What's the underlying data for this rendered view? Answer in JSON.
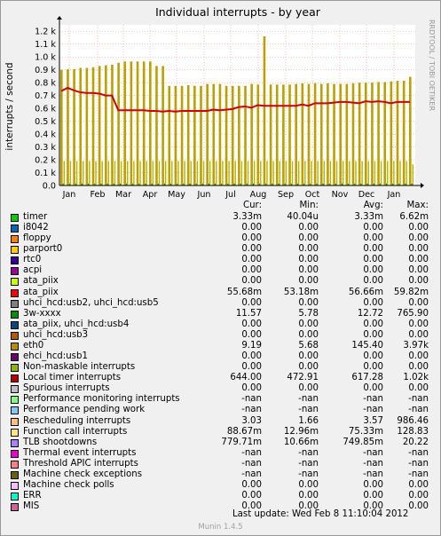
{
  "chart_data": {
    "type": "bar",
    "title": "Individual interrupts - by year",
    "ylabel": "interrupts / second",
    "side_label": "RRDTOOL / TOBI OETIKER",
    "months": [
      "Jan",
      "Feb",
      "Mar",
      "Apr",
      "May",
      "Jun",
      "Jul",
      "Aug",
      "Sep",
      "Oct",
      "Nov",
      "Dec",
      "Jan"
    ],
    "yticks": [
      "0.0",
      "0.1 k",
      "0.2 k",
      "0.3 k",
      "0.4 k",
      "0.5 k",
      "0.6 k",
      "0.7 k",
      "0.8 k",
      "0.9 k",
      "1.0 k",
      "1.1 k",
      "1.2 k"
    ],
    "ylim": [
      0,
      1250
    ],
    "grid": true,
    "series": [
      {
        "name": "TLB shootdowns",
        "color": "#bba000",
        "render": "bars",
        "x": [
          0,
          1,
          2,
          3,
          4,
          5,
          6,
          7,
          8,
          9,
          10,
          11,
          12,
          13,
          14,
          15,
          16,
          17,
          18,
          19,
          20,
          21,
          22,
          23,
          24,
          25,
          26,
          27,
          28,
          29,
          30,
          31,
          32,
          33,
          34,
          35,
          36,
          37,
          38,
          39,
          40,
          41,
          42,
          43,
          44,
          45,
          46,
          47,
          48,
          49,
          50,
          51,
          52,
          53,
          54,
          55
        ],
        "values": [
          900,
          905,
          905,
          915,
          915,
          920,
          930,
          935,
          940,
          955,
          965,
          965,
          965,
          965,
          965,
          930,
          930,
          775,
          775,
          775,
          780,
          775,
          775,
          790,
          790,
          790,
          775,
          775,
          775,
          775,
          790,
          785,
          1160,
          785,
          785,
          785,
          785,
          790,
          795,
          790,
          795,
          790,
          795,
          790,
          790,
          790,
          795,
          800,
          800,
          800,
          805,
          805,
          810,
          815,
          815,
          845
        ]
      },
      {
        "name": "Local timer interrupts",
        "color": "#cc0000",
        "render": "line",
        "x": [
          0,
          1,
          2,
          3,
          4,
          5,
          6,
          7,
          8,
          9,
          10,
          11,
          12,
          13,
          14,
          15,
          16,
          17,
          18,
          19,
          20,
          21,
          22,
          23,
          24,
          25,
          26,
          27,
          28,
          29,
          30,
          31,
          32,
          33,
          34,
          35,
          36,
          37,
          38,
          39,
          40,
          41,
          42,
          43,
          44,
          45,
          46,
          47,
          48,
          49,
          50,
          51,
          52,
          53,
          54,
          55
        ],
        "values": [
          735,
          760,
          740,
          725,
          720,
          720,
          715,
          700,
          700,
          585,
          585,
          585,
          585,
          585,
          580,
          580,
          575,
          580,
          575,
          580,
          580,
          580,
          580,
          580,
          590,
          585,
          590,
          595,
          610,
          615,
          605,
          625,
          620,
          620,
          620,
          620,
          620,
          620,
          630,
          620,
          640,
          640,
          640,
          645,
          650,
          650,
          645,
          640,
          655,
          650,
          655,
          650,
          640,
          650,
          650,
          650
        ]
      },
      {
        "name": "Rescheduling interrupts",
        "color": "#b3b300",
        "render": "bars-low",
        "x": [
          0,
          1,
          2,
          3,
          4,
          5,
          6,
          7,
          8,
          9,
          10,
          11,
          12,
          13,
          14,
          15,
          16,
          17,
          18,
          19,
          20,
          21,
          22,
          23,
          24,
          25,
          26,
          27,
          28,
          29,
          30,
          31,
          32,
          33,
          34,
          35,
          36,
          37,
          38,
          39,
          40,
          41,
          42,
          43,
          44,
          45,
          46,
          47,
          48,
          49,
          50,
          51,
          52,
          53,
          54,
          55
        ],
        "values": [
          190,
          190,
          190,
          190,
          190,
          190,
          190,
          190,
          190,
          190,
          190,
          190,
          190,
          190,
          190,
          190,
          190,
          190,
          190,
          190,
          190,
          190,
          190,
          190,
          190,
          190,
          190,
          190,
          190,
          190,
          190,
          190,
          190,
          190,
          190,
          190,
          190,
          190,
          190,
          190,
          190,
          190,
          190,
          190,
          190,
          190,
          190,
          190,
          190,
          190,
          190,
          190,
          190,
          190,
          190,
          165
        ]
      },
      {
        "name": "3w-xxxx",
        "color": "#008f00",
        "render": "bars-low",
        "x": [
          0,
          1,
          2,
          3,
          4,
          5,
          6,
          7,
          8,
          9,
          10,
          11,
          12,
          13,
          14,
          15,
          16,
          17,
          18,
          19,
          20,
          21,
          22,
          23,
          24,
          25,
          26,
          27,
          28,
          29,
          30,
          31,
          32,
          33,
          34,
          35,
          36,
          37,
          38,
          39,
          40,
          41,
          42,
          43,
          44,
          45,
          46,
          47,
          48,
          49,
          50,
          51,
          52,
          53,
          54,
          55
        ],
        "values": [
          15,
          15,
          15,
          15,
          15,
          15,
          15,
          15,
          15,
          15,
          15,
          15,
          15,
          15,
          15,
          15,
          15,
          15,
          15,
          15,
          15,
          15,
          15,
          15,
          15,
          15,
          15,
          15,
          15,
          15,
          15,
          15,
          15,
          15,
          15,
          15,
          15,
          15,
          15,
          15,
          15,
          15,
          15,
          15,
          15,
          15,
          15,
          15,
          15,
          15,
          15,
          15,
          15,
          15,
          15,
          15
        ]
      }
    ]
  },
  "legend": {
    "headers": [
      "Cur:",
      "Min:",
      "Avg:",
      "Max:"
    ],
    "rows": [
      {
        "name": "timer",
        "color": "#00cc00",
        "cur": "3.33m",
        "min": "40.04u",
        "avg": "3.33m",
        "max": "6.62m"
      },
      {
        "name": "i8042",
        "color": "#0066b3",
        "cur": "0.00",
        "min": "0.00",
        "avg": "0.00",
        "max": "0.00"
      },
      {
        "name": "floppy",
        "color": "#ff8000",
        "cur": "0.00",
        "min": "0.00",
        "avg": "0.00",
        "max": "0.00"
      },
      {
        "name": "parport0",
        "color": "#ffcc00",
        "cur": "0.00",
        "min": "0.00",
        "avg": "0.00",
        "max": "0.00"
      },
      {
        "name": "rtc0",
        "color": "#330099",
        "cur": "0.00",
        "min": "0.00",
        "avg": "0.00",
        "max": "0.00"
      },
      {
        "name": "acpi",
        "color": "#990099",
        "cur": "0.00",
        "min": "0.00",
        "avg": "0.00",
        "max": "0.00"
      },
      {
        "name": "ata_piix",
        "color": "#ccff00",
        "cur": "0.00",
        "min": "0.00",
        "avg": "0.00",
        "max": "0.00"
      },
      {
        "name": "ata_piix",
        "color": "#ff0000",
        "cur": "55.68m",
        "min": "53.18m",
        "avg": "56.66m",
        "max": "59.82m"
      },
      {
        "name": "uhci_hcd:usb2, uhci_hcd:usb5",
        "color": "#808080",
        "cur": "0.00",
        "min": "0.00",
        "avg": "0.00",
        "max": "0.00"
      },
      {
        "name": "3w-xxxx",
        "color": "#008f00",
        "cur": "11.57",
        "min": "5.78",
        "avg": "12.72",
        "max": "765.90"
      },
      {
        "name": "ata_piix, uhci_hcd:usb4",
        "color": "#00487d",
        "cur": "0.00",
        "min": "0.00",
        "avg": "0.00",
        "max": "0.00"
      },
      {
        "name": "uhci_hcd:usb3",
        "color": "#b35a00",
        "cur": "0.00",
        "min": "0.00",
        "avg": "0.00",
        "max": "0.00"
      },
      {
        "name": "eth0",
        "color": "#b38f00",
        "cur": "9.19",
        "min": "5.68",
        "avg": "145.40",
        "max": "3.97k"
      },
      {
        "name": "ehci_hcd:usb1",
        "color": "#6b006b",
        "cur": "0.00",
        "min": "0.00",
        "avg": "0.00",
        "max": "0.00"
      },
      {
        "name": "Non-maskable interrupts",
        "color": "#8fb300",
        "cur": "0.00",
        "min": "0.00",
        "avg": "0.00",
        "max": "0.00"
      },
      {
        "name": "Local timer interrupts",
        "color": "#b30000",
        "cur": "644.00",
        "min": "472.91",
        "avg": "617.28",
        "max": "1.02k"
      },
      {
        "name": "Spurious interrupts",
        "color": "#bebebe",
        "cur": "0.00",
        "min": "0.00",
        "avg": "0.00",
        "max": "0.00"
      },
      {
        "name": "Performance monitoring interrupts",
        "color": "#80ff80",
        "cur": "-nan",
        "min": "-nan",
        "avg": "-nan",
        "max": "-nan"
      },
      {
        "name": "Performance pending work",
        "color": "#80c9ff",
        "cur": "-nan",
        "min": "-nan",
        "avg": "-nan",
        "max": "-nan"
      },
      {
        "name": "Rescheduling interrupts",
        "color": "#ffc080",
        "cur": "3.03",
        "min": "1.66",
        "avg": "3.57",
        "max": "986.46"
      },
      {
        "name": "Function call interrupts",
        "color": "#ffe680",
        "cur": "88.67m",
        "min": "12.96m",
        "avg": "75.33m",
        "max": "128.83"
      },
      {
        "name": "TLB shootdowns",
        "color": "#aa80ff",
        "cur": "779.71m",
        "min": "10.66m",
        "avg": "749.85m",
        "max": "20.22"
      },
      {
        "name": "Thermal event interrupts",
        "color": "#ee00cc",
        "cur": "-nan",
        "min": "-nan",
        "avg": "-nan",
        "max": "-nan"
      },
      {
        "name": "Threshold APIC interrupts",
        "color": "#ff8080",
        "cur": "-nan",
        "min": "-nan",
        "avg": "-nan",
        "max": "-nan"
      },
      {
        "name": "Machine check exceptions",
        "color": "#666600",
        "cur": "-nan",
        "min": "-nan",
        "avg": "-nan",
        "max": "-nan"
      },
      {
        "name": "Machine check polls",
        "color": "#ffbfff",
        "cur": "0.00",
        "min": "0.00",
        "avg": "0.00",
        "max": "0.00"
      },
      {
        "name": "ERR",
        "color": "#00ffcc",
        "cur": "0.00",
        "min": "0.00",
        "avg": "0.00",
        "max": "0.00"
      },
      {
        "name": "MIS",
        "color": "#cc6699",
        "cur": "0.00",
        "min": "0.00",
        "avg": "0.00",
        "max": "0.00"
      }
    ]
  },
  "footer": {
    "last_update": "Last update:  Wed Feb  8 11:10:04 2012",
    "munin_version": "Munin 1.4.5"
  }
}
